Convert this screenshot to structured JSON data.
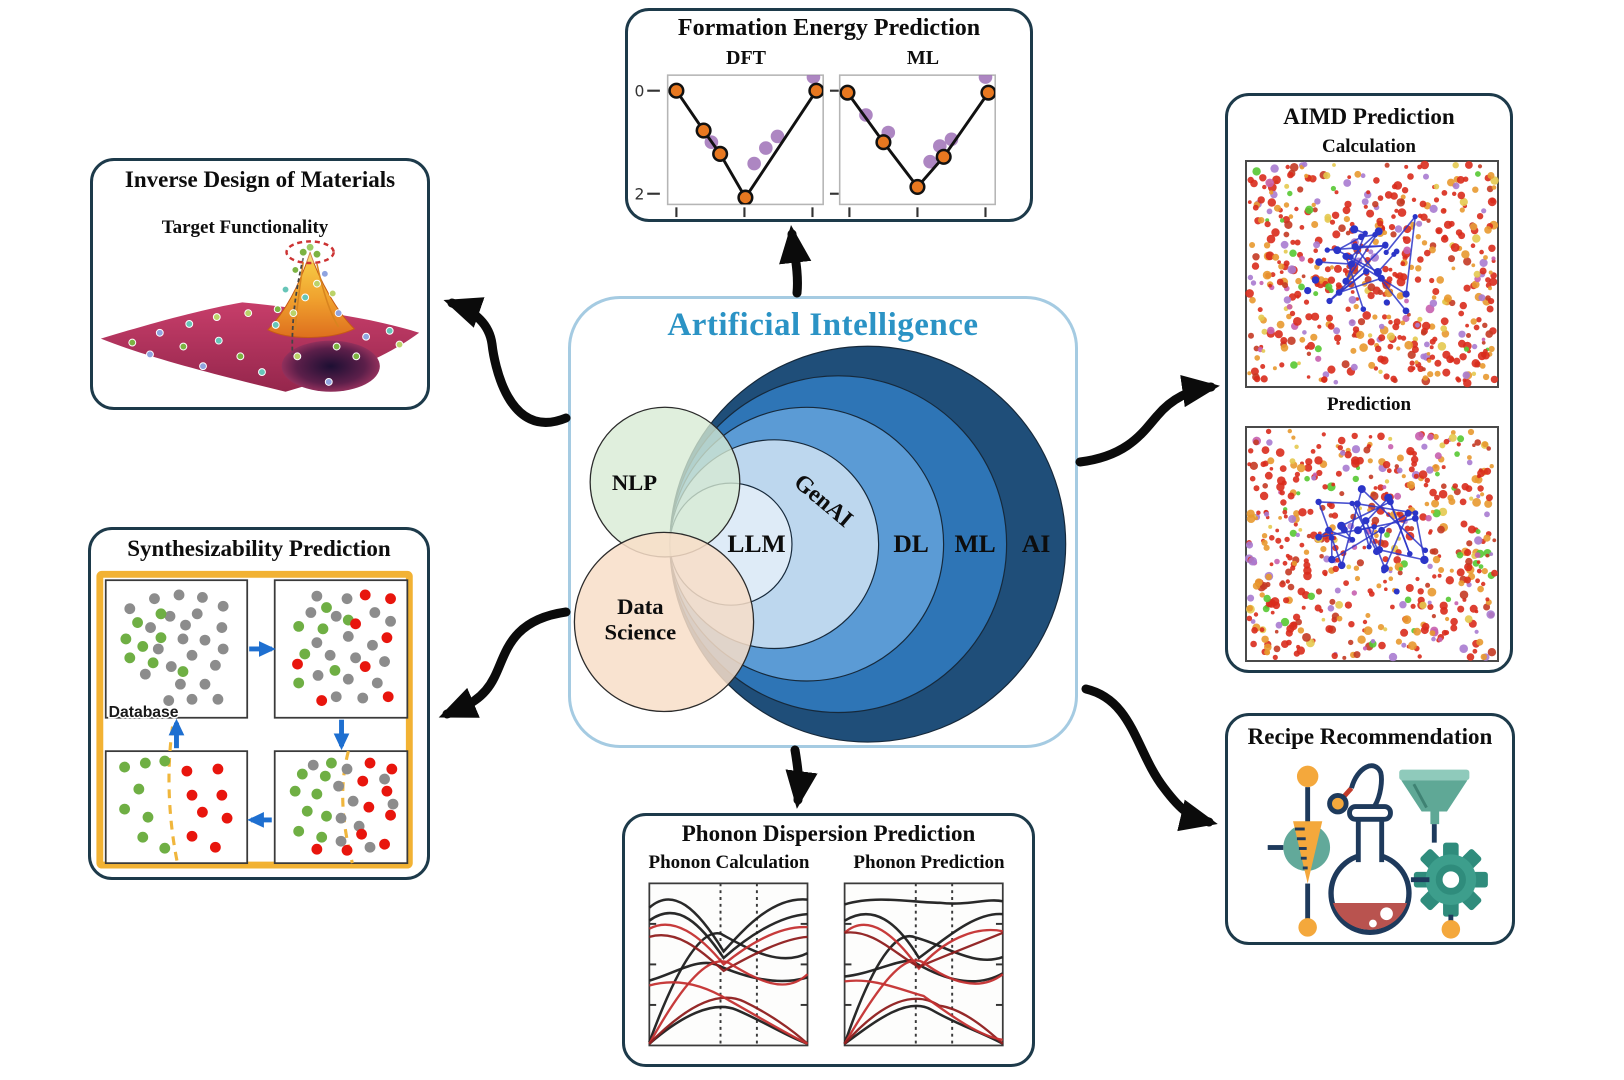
{
  "center": {
    "title": "Artificial Intelligence",
    "title_color": "#2b93c5",
    "border_color": "#a5cbe2",
    "rings": [
      {
        "label": "AI",
        "color": "#1F4E79",
        "r": 201
      },
      {
        "label": "ML",
        "color": "#2E75B6",
        "r": 171
      },
      {
        "label": "DL",
        "color": "#5B9BD5",
        "r": 139
      },
      {
        "label": "GenAI",
        "color": "#BDD7EE",
        "r": 106
      },
      {
        "label": "LLM",
        "color": "#DEEBF7",
        "r": 62
      }
    ],
    "overlays": [
      {
        "label": "NLP",
        "color": "#D7EAD3"
      },
      {
        "label": "Data Science",
        "lines": [
          "Data",
          "Science"
        ],
        "color": "#F8DEC8"
      }
    ]
  },
  "boxes": {
    "inverse_design": {
      "title": "Inverse Design of Materials",
      "subtitle": "Target Functionality"
    },
    "formation_energy": {
      "title": "Formation Energy Prediction",
      "yticks": [
        "0",
        "2"
      ],
      "panels": [
        {
          "label": "DFT",
          "hull": [
            [
              47,
              82
            ],
            [
              75,
              123
            ],
            [
              92,
              147
            ],
            [
              118,
              192
            ],
            [
              191,
              82
            ]
          ],
          "scatter": [
            [
              83,
              135
            ],
            [
              127,
              157
            ],
            [
              139,
              141
            ],
            [
              151,
              129
            ],
            [
              188,
              68
            ]
          ]
        },
        {
          "label": "ML",
          "hull": [
            [
              223,
              84
            ],
            [
              260,
              135
            ],
            [
              295,
              181
            ],
            [
              322,
              150
            ],
            [
              368,
              84
            ]
          ],
          "scatter": [
            [
              242,
              107
            ],
            [
              265,
              125
            ],
            [
              308,
              155
            ],
            [
              318,
              139
            ],
            [
              330,
              132
            ],
            [
              365,
              68
            ]
          ]
        }
      ],
      "point_color": "#E87820",
      "scatter_color": "#9B6BB5"
    },
    "aimd": {
      "title": "AIMD Prediction",
      "panel_labels": [
        "Calculation",
        "Prediction"
      ],
      "palette": [
        "#D92B1C",
        "#C43A24",
        "#E8992F",
        "#A87BD0",
        "#C75FAE",
        "#56C832",
        "#E4C94F"
      ],
      "cluster_color": "#2B35C8"
    },
    "synthesizability": {
      "title": "Synthesizability Prediction",
      "database_label": "Database",
      "frame_color": "#F2B233",
      "arrow_color": "#1E6FD0",
      "dot_colors": {
        "g": "#8C8C8C",
        "n": "#6FAF44",
        "r": "#E8150D"
      },
      "panels": {
        "tl": [
          [
            "g",
            0.14,
            0.18
          ],
          [
            "g",
            0.33,
            0.1
          ],
          [
            "g",
            0.52,
            0.07
          ],
          [
            "g",
            0.7,
            0.09
          ],
          [
            "g",
            0.86,
            0.16
          ],
          [
            "g",
            0.66,
            0.22
          ],
          [
            "g",
            0.45,
            0.24
          ],
          [
            "g",
            0.57,
            0.31
          ],
          [
            "g",
            0.85,
            0.33
          ],
          [
            "g",
            0.3,
            0.33
          ],
          [
            "g",
            0.55,
            0.42
          ],
          [
            "g",
            0.72,
            0.43
          ],
          [
            "g",
            0.86,
            0.5
          ],
          [
            "g",
            0.36,
            0.5
          ],
          [
            "g",
            0.62,
            0.55
          ],
          [
            "g",
            0.8,
            0.63
          ],
          [
            "g",
            0.46,
            0.64
          ],
          [
            "g",
            0.26,
            0.7
          ],
          [
            "g",
            0.53,
            0.78
          ],
          [
            "g",
            0.72,
            0.78
          ],
          [
            "g",
            0.62,
            0.9
          ],
          [
            "g",
            0.82,
            0.9
          ],
          [
            "g",
            0.44,
            0.91
          ],
          [
            "n",
            0.38,
            0.22
          ],
          [
            "n",
            0.2,
            0.29
          ],
          [
            "n",
            0.11,
            0.42
          ],
          [
            "n",
            0.38,
            0.41
          ],
          [
            "n",
            0.24,
            0.48
          ],
          [
            "n",
            0.32,
            0.61
          ],
          [
            "n",
            0.55,
            0.68
          ],
          [
            "n",
            0.14,
            0.57
          ]
        ],
        "tr": [
          [
            "g",
            0.3,
            0.08
          ],
          [
            "g",
            0.55,
            0.1
          ],
          [
            "g",
            0.25,
            0.21
          ],
          [
            "g",
            0.46,
            0.24
          ],
          [
            "g",
            0.78,
            0.21
          ],
          [
            "g",
            0.91,
            0.28
          ],
          [
            "g",
            0.56,
            0.4
          ],
          [
            "g",
            0.3,
            0.45
          ],
          [
            "g",
            0.76,
            0.47
          ],
          [
            "g",
            0.41,
            0.55
          ],
          [
            "g",
            0.62,
            0.57
          ],
          [
            "g",
            0.86,
            0.6
          ],
          [
            "g",
            0.31,
            0.71
          ],
          [
            "g",
            0.56,
            0.74
          ],
          [
            "g",
            0.8,
            0.77
          ],
          [
            "g",
            0.46,
            0.88
          ],
          [
            "g",
            0.68,
            0.89
          ],
          [
            "n",
            0.38,
            0.17
          ],
          [
            "n",
            0.15,
            0.32
          ],
          [
            "n",
            0.35,
            0.34
          ],
          [
            "n",
            0.56,
            0.27
          ],
          [
            "n",
            0.2,
            0.54
          ],
          [
            "n",
            0.45,
            0.67
          ],
          [
            "n",
            0.15,
            0.77
          ],
          [
            "r",
            0.7,
            0.07
          ],
          [
            "r",
            0.91,
            0.1
          ],
          [
            "r",
            0.62,
            0.3
          ],
          [
            "r",
            0.88,
            0.41
          ],
          [
            "r",
            0.14,
            0.62
          ],
          [
            "r",
            0.7,
            0.64
          ],
          [
            "r",
            0.89,
            0.88
          ],
          [
            "r",
            0.34,
            0.91
          ]
        ],
        "br": [
          [
            "n",
            0.42,
            0.06
          ],
          [
            "n",
            0.18,
            0.17
          ],
          [
            "n",
            0.37,
            0.19
          ],
          [
            "n",
            0.12,
            0.34
          ],
          [
            "n",
            0.3,
            0.37
          ],
          [
            "n",
            0.22,
            0.54
          ],
          [
            "n",
            0.38,
            0.59
          ],
          [
            "n",
            0.15,
            0.74
          ],
          [
            "n",
            0.34,
            0.8
          ],
          [
            "g",
            0.27,
            0.08
          ],
          [
            "g",
            0.55,
            0.12
          ],
          [
            "g",
            0.48,
            0.29
          ],
          [
            "g",
            0.6,
            0.44
          ],
          [
            "g",
            0.5,
            0.61
          ],
          [
            "g",
            0.65,
            0.69
          ],
          [
            "g",
            0.5,
            0.84
          ],
          [
            "g",
            0.86,
            0.22
          ],
          [
            "g",
            0.93,
            0.47
          ],
          [
            "g",
            0.74,
            0.9
          ],
          [
            "r",
            0.74,
            0.06
          ],
          [
            "r",
            0.92,
            0.12
          ],
          [
            "r",
            0.68,
            0.24
          ],
          [
            "r",
            0.88,
            0.34
          ],
          [
            "r",
            0.73,
            0.5
          ],
          [
            "r",
            0.91,
            0.58
          ],
          [
            "r",
            0.67,
            0.77
          ],
          [
            "r",
            0.86,
            0.87
          ],
          [
            "r",
            0.3,
            0.92
          ],
          [
            "r",
            0.55,
            0.93
          ]
        ],
        "bl": [
          [
            "n",
            0.1,
            0.1
          ],
          [
            "n",
            0.26,
            0.06
          ],
          [
            "n",
            0.41,
            0.04
          ],
          [
            "n",
            0.21,
            0.32
          ],
          [
            "n",
            0.1,
            0.52
          ],
          [
            "n",
            0.28,
            0.6
          ],
          [
            "n",
            0.24,
            0.8
          ],
          [
            "n",
            0.41,
            0.91
          ],
          [
            "r",
            0.58,
            0.14
          ],
          [
            "r",
            0.82,
            0.12
          ],
          [
            "r",
            0.62,
            0.38
          ],
          [
            "r",
            0.85,
            0.38
          ],
          [
            "r",
            0.7,
            0.55
          ],
          [
            "r",
            0.89,
            0.61
          ],
          [
            "r",
            0.62,
            0.79
          ],
          [
            "r",
            0.8,
            0.9
          ]
        ]
      }
    },
    "phonon": {
      "title": "Phonon Dispersion Prediction",
      "panel_labels": [
        "Phonon Calculation",
        "Phonon Prediction"
      ]
    },
    "recipe": {
      "title": "Recipe Recommendation"
    }
  }
}
